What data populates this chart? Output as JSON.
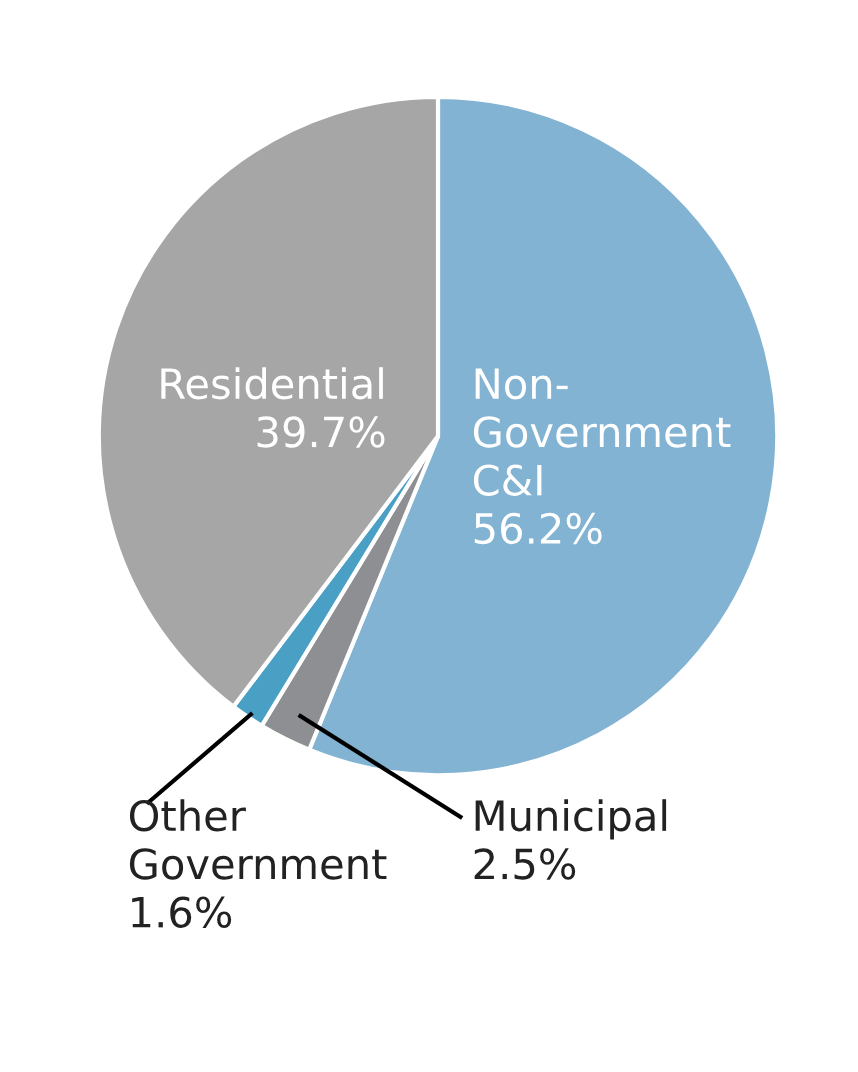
{
  "chart_data": {
    "type": "pie",
    "categories": [
      "Non-\nGovernment\nC&I",
      "Municipal",
      "Other\nGovernment",
      "Residential"
    ],
    "values": [
      56.2,
      2.5,
      1.6,
      39.7
    ],
    "colors": [
      "#82b3d3",
      "#8e8f92",
      "#4a9fc4",
      "#a6a6a6"
    ],
    "value_labels": [
      "56.2%",
      "2.5%",
      "1.6%",
      "39.7%"
    ]
  }
}
